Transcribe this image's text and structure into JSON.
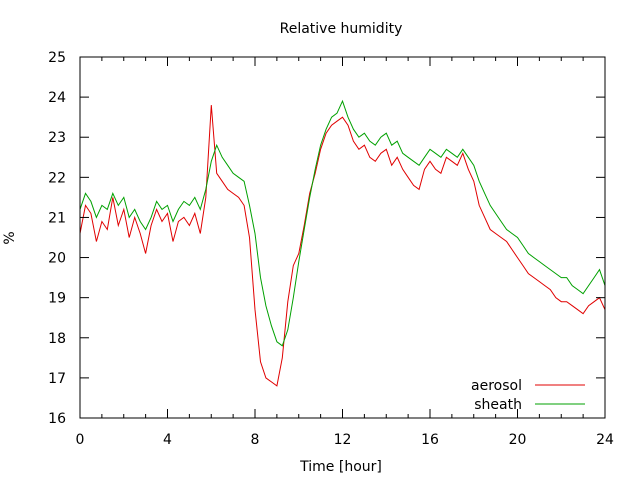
{
  "chart_data": {
    "type": "line",
    "title": "Relative humidity",
    "xlabel": "Time [hour]",
    "ylabel": "%",
    "xlim": [
      0,
      24
    ],
    "ylim": [
      16,
      25
    ],
    "xticks": [
      0,
      4,
      8,
      12,
      16,
      20,
      24
    ],
    "yticks": [
      16,
      17,
      18,
      19,
      20,
      21,
      22,
      23,
      24,
      25
    ],
    "grid": false,
    "legend_position": "bottom-right",
    "series": [
      {
        "name": "aerosol",
        "color": "#e00000",
        "x": [
          0,
          0.25,
          0.5,
          0.75,
          1,
          1.25,
          1.5,
          1.75,
          2,
          2.25,
          2.5,
          2.75,
          3,
          3.25,
          3.5,
          3.75,
          4,
          4.25,
          4.5,
          4.75,
          5,
          5.25,
          5.5,
          5.75,
          6,
          6.25,
          6.5,
          6.75,
          7,
          7.25,
          7.5,
          7.75,
          8,
          8.25,
          8.5,
          8.75,
          9,
          9.25,
          9.5,
          9.75,
          10,
          10.25,
          10.5,
          10.75,
          11,
          11.25,
          11.5,
          11.75,
          12,
          12.25,
          12.5,
          12.75,
          13,
          13.25,
          13.5,
          13.75,
          14,
          14.25,
          14.5,
          14.75,
          15,
          15.25,
          15.5,
          15.75,
          16,
          16.25,
          16.5,
          16.75,
          17,
          17.25,
          17.5,
          17.75,
          18,
          18.25,
          18.5,
          18.75,
          19,
          19.25,
          19.5,
          19.75,
          20,
          20.25,
          20.5,
          20.75,
          21,
          21.25,
          21.5,
          21.75,
          22,
          22.25,
          22.5,
          22.75,
          23,
          23.25,
          23.5,
          23.75,
          24
        ],
        "y": [
          20.6,
          21.3,
          21.1,
          20.4,
          20.9,
          20.7,
          21.5,
          20.8,
          21.2,
          20.5,
          21.0,
          20.6,
          20.1,
          20.8,
          21.2,
          20.9,
          21.1,
          20.4,
          20.9,
          21.0,
          20.8,
          21.1,
          20.6,
          21.5,
          23.8,
          22.1,
          21.9,
          21.7,
          21.6,
          21.5,
          21.3,
          20.5,
          18.7,
          17.4,
          17.0,
          16.9,
          16.8,
          17.5,
          18.9,
          19.8,
          20.1,
          20.8,
          21.6,
          22.1,
          22.7,
          23.1,
          23.3,
          23.4,
          23.5,
          23.3,
          22.9,
          22.7,
          22.8,
          22.5,
          22.4,
          22.6,
          22.7,
          22.3,
          22.5,
          22.2,
          22.0,
          21.8,
          21.7,
          22.2,
          22.4,
          22.2,
          22.1,
          22.5,
          22.4,
          22.3,
          22.6,
          22.2,
          21.9,
          21.3,
          21.0,
          20.7,
          20.6,
          20.5,
          20.4,
          20.2,
          20.0,
          19.8,
          19.6,
          19.5,
          19.4,
          19.3,
          19.2,
          19.0,
          18.9,
          18.9,
          18.8,
          18.7,
          18.6,
          18.8,
          18.9,
          19.0,
          18.7
        ]
      },
      {
        "name": "sheath",
        "color": "#00a000",
        "x": [
          0,
          0.25,
          0.5,
          0.75,
          1,
          1.25,
          1.5,
          1.75,
          2,
          2.25,
          2.5,
          2.75,
          3,
          3.25,
          3.5,
          3.75,
          4,
          4.25,
          4.5,
          4.75,
          5,
          5.25,
          5.5,
          5.75,
          6,
          6.25,
          6.5,
          6.75,
          7,
          7.25,
          7.5,
          7.75,
          8,
          8.25,
          8.5,
          8.75,
          9,
          9.25,
          9.5,
          9.75,
          10,
          10.25,
          10.5,
          10.75,
          11,
          11.25,
          11.5,
          11.75,
          12,
          12.25,
          12.5,
          12.75,
          13,
          13.25,
          13.5,
          13.75,
          14,
          14.25,
          14.5,
          14.75,
          15,
          15.25,
          15.5,
          15.75,
          16,
          16.25,
          16.5,
          16.75,
          17,
          17.25,
          17.5,
          17.75,
          18,
          18.25,
          18.5,
          18.75,
          19,
          19.25,
          19.5,
          19.75,
          20,
          20.25,
          20.5,
          20.75,
          21,
          21.25,
          21.5,
          21.75,
          22,
          22.25,
          22.5,
          22.75,
          23,
          23.25,
          23.5,
          23.75,
          24
        ],
        "y": [
          21.2,
          21.6,
          21.4,
          21.0,
          21.3,
          21.2,
          21.6,
          21.3,
          21.5,
          21.0,
          21.2,
          20.9,
          20.7,
          21.0,
          21.4,
          21.2,
          21.3,
          20.9,
          21.2,
          21.4,
          21.3,
          21.5,
          21.2,
          21.7,
          22.4,
          22.8,
          22.5,
          22.3,
          22.1,
          22.0,
          21.9,
          21.3,
          20.6,
          19.5,
          18.8,
          18.3,
          17.9,
          17.8,
          18.2,
          19.0,
          19.9,
          20.7,
          21.5,
          22.2,
          22.8,
          23.2,
          23.5,
          23.6,
          23.9,
          23.5,
          23.2,
          23.0,
          23.1,
          22.9,
          22.8,
          23.0,
          23.1,
          22.8,
          22.9,
          22.6,
          22.5,
          22.4,
          22.3,
          22.5,
          22.7,
          22.6,
          22.5,
          22.7,
          22.6,
          22.5,
          22.7,
          22.5,
          22.3,
          21.9,
          21.6,
          21.3,
          21.1,
          20.9,
          20.7,
          20.6,
          20.5,
          20.3,
          20.1,
          20.0,
          19.9,
          19.8,
          19.7,
          19.6,
          19.5,
          19.5,
          19.3,
          19.2,
          19.1,
          19.3,
          19.5,
          19.7,
          19.3
        ]
      }
    ]
  }
}
